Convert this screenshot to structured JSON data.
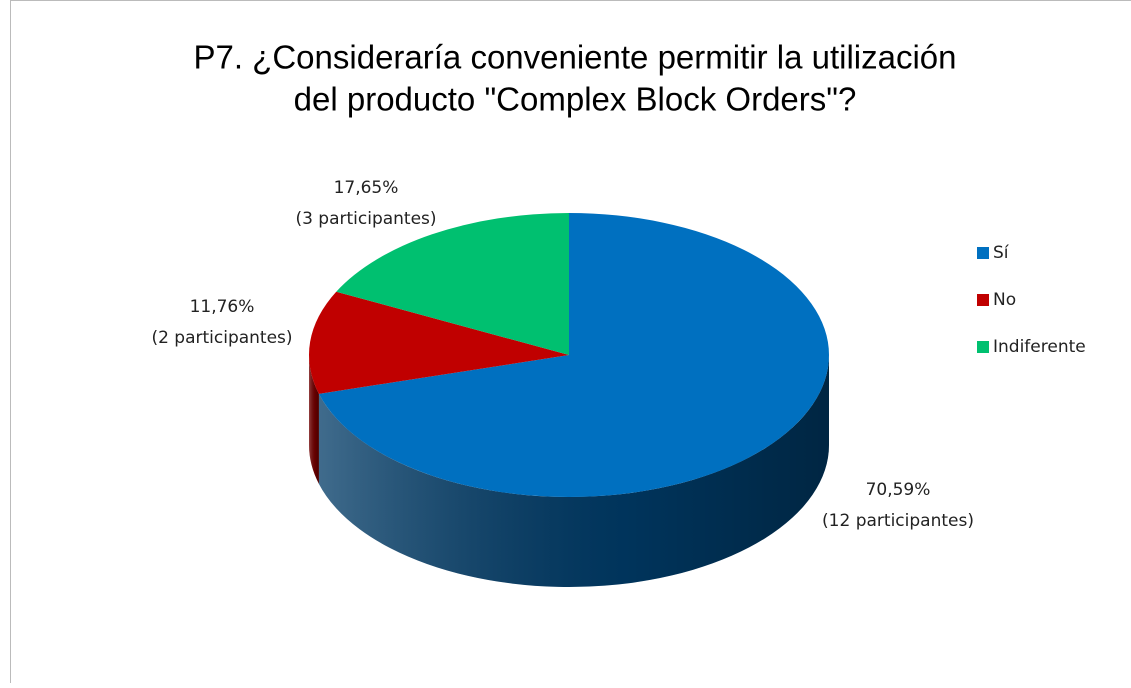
{
  "chart_data": {
    "type": "pie3d",
    "title": "P7. ¿Consideraría conveniente permitir la utilización",
    "title_line2": "del producto \"Complex Block Orders\"?",
    "categories": [
      "Sí",
      "No",
      "Indiferente"
    ],
    "values": [
      70.59,
      11.76,
      17.65
    ],
    "value_labels": [
      "70,59%",
      "11,76%",
      "17,65%"
    ],
    "counts": [
      12,
      2,
      3
    ],
    "count_labels": [
      "(12 participantes)",
      "(2 participantes)",
      "(3 participantes)"
    ],
    "colors": [
      "#0070c0",
      "#c00000",
      "#00c070"
    ],
    "side_colors": [
      "#003a66",
      "#700000",
      "#006a3c"
    ],
    "legend": "right"
  }
}
